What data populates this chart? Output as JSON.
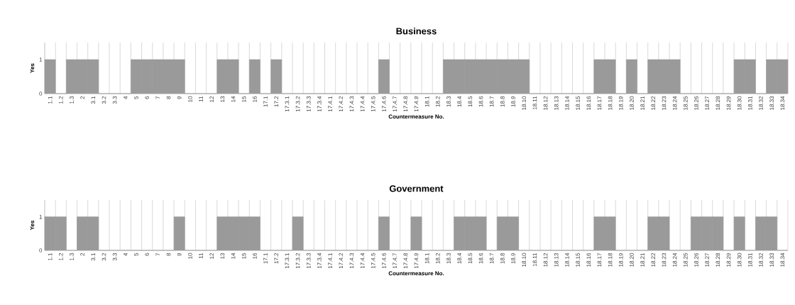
{
  "chart_data": [
    {
      "type": "bar",
      "title": "Business",
      "xlabel": "Countermeasure No.",
      "ylabel": "Yes",
      "color": "#9a9a9a",
      "grid": "x",
      "categories": [
        "1.1",
        "1.2",
        "1.3",
        "2",
        "3.1",
        "3.2",
        "3.3",
        "4",
        "5",
        "6",
        "7",
        "8",
        "9",
        "10",
        "11",
        "12",
        "13",
        "14",
        "15",
        "16",
        "17.1",
        "17.2",
        "17.3.1",
        "17.3.2",
        "17.3.3",
        "17.3.4",
        "17.4.1",
        "17.4.2",
        "17.4.3",
        "17.4.4",
        "17.4.5",
        "17.4.6",
        "17.4.7",
        "17.4.8",
        "17.4.9",
        "18.1",
        "18.2",
        "18.3",
        "18.4",
        "18.5",
        "18.6",
        "18.7",
        "18.8",
        "18.9",
        "18.10",
        "18.11",
        "18.12",
        "18.13",
        "18.14",
        "18.15",
        "18.16",
        "18.17",
        "18.18",
        "18.19",
        "18.20",
        "18.21",
        "18.22",
        "18.23",
        "18.24",
        "18.25",
        "18.26",
        "18.27",
        "18.28",
        "18.29",
        "18.30",
        "18.31",
        "18.32",
        "18.33",
        "18.34"
      ],
      "values": [
        1,
        0,
        1,
        1,
        1,
        0,
        0,
        0,
        1,
        1,
        1,
        1,
        1,
        0,
        0,
        0,
        1,
        1,
        0,
        1,
        0,
        1,
        0,
        0,
        0,
        0,
        0,
        0,
        0,
        0,
        0,
        1,
        0,
        0,
        0,
        0,
        0,
        1,
        1,
        1,
        1,
        1,
        1,
        1,
        1,
        0,
        0,
        0,
        0,
        0,
        0,
        1,
        1,
        0,
        1,
        0,
        1,
        1,
        1,
        0,
        0,
        0,
        0,
        0,
        1,
        1,
        0,
        1,
        1
      ],
      "ylim": [
        0,
        1.5
      ],
      "yticks": [
        0,
        1
      ]
    },
    {
      "type": "bar",
      "title": "Government",
      "xlabel": "Countermeasure No.",
      "ylabel": "Yes",
      "color": "#9a9a9a",
      "grid": "x",
      "categories": [
        "1.1",
        "1.2",
        "1.3",
        "2",
        "3.1",
        "3.2",
        "3.3",
        "4",
        "5",
        "6",
        "7",
        "8",
        "9",
        "10",
        "11",
        "12",
        "13",
        "14",
        "15",
        "16",
        "17.1",
        "17.2",
        "17.3.1",
        "17.3.2",
        "17.3.3",
        "17.3.4",
        "17.4.1",
        "17.4.2",
        "17.4.3",
        "17.4.4",
        "17.4.5",
        "17.4.6",
        "17.4.7",
        "17.4.8",
        "17.4.9",
        "18.1",
        "18.2",
        "18.3",
        "18.4",
        "18.5",
        "18.6",
        "18.7",
        "18.8",
        "18.9",
        "18.10",
        "18.11",
        "18.12",
        "18.13",
        "18.14",
        "18.15",
        "18.16",
        "18.17",
        "18.18",
        "18.19",
        "18.20",
        "18.21",
        "18.22",
        "18.23",
        "18.24",
        "18.25",
        "18.26",
        "18.27",
        "18.28",
        "18.29",
        "18.30",
        "18.31",
        "18.32",
        "18.33",
        "18.34"
      ],
      "values": [
        1,
        1,
        0,
        1,
        1,
        0,
        0,
        0,
        0,
        0,
        0,
        0,
        1,
        0,
        0,
        0,
        1,
        1,
        1,
        1,
        0,
        0,
        0,
        1,
        0,
        0,
        0,
        0,
        0,
        0,
        0,
        1,
        0,
        0,
        1,
        0,
        0,
        0,
        1,
        1,
        1,
        0,
        1,
        1,
        0,
        0,
        0,
        0,
        0,
        0,
        0,
        1,
        1,
        0,
        0,
        0,
        1,
        1,
        0,
        0,
        1,
        1,
        1,
        0,
        1,
        0,
        1,
        1,
        0
      ],
      "ylim": [
        0,
        1.5
      ],
      "yticks": [
        0,
        1
      ]
    }
  ]
}
